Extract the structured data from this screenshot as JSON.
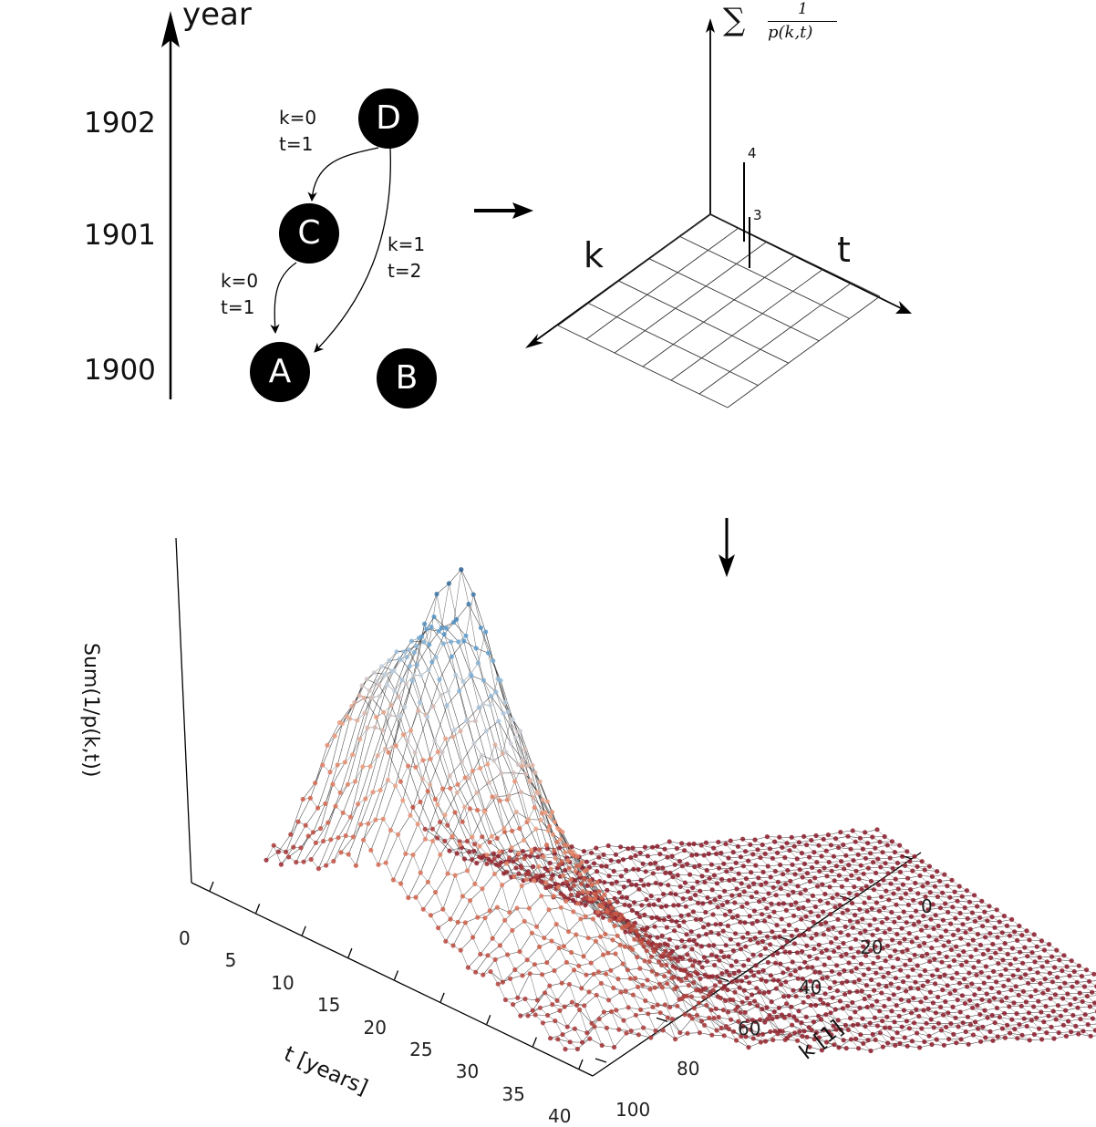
{
  "timeline": {
    "axis_label": "year",
    "years": [
      "1902",
      "1901",
      "1900"
    ]
  },
  "nodes": {
    "D": "D",
    "C": "C",
    "A": "A",
    "B": "B"
  },
  "edges": {
    "d_to_c": "k=0\nt=1",
    "c_to_a": "k=0\nt=1",
    "d_to_a": "k=1\nt=2"
  },
  "schematic": {
    "z_label_sum": "∑",
    "z_label_num": "1",
    "z_label_den": "p(k,t)",
    "k_label": "k",
    "t_label": "t",
    "bar_labels": [
      "4",
      "3"
    ]
  },
  "chart_data": {
    "type": "surface",
    "title": "",
    "xlabel": "t [years]",
    "ylabel": "k [1]",
    "zlabel": "Sum(1/p(k,t))",
    "x_ticks": [
      "0",
      "5",
      "10",
      "15",
      "20",
      "25",
      "30",
      "35",
      "40"
    ],
    "y_ticks": [
      "0",
      "20",
      "40",
      "60",
      "80",
      "100"
    ],
    "xlim": [
      0,
      40
    ],
    "ylim": [
      0,
      100
    ],
    "colormap": [
      "#2a5d8c",
      "#5e9fd0",
      "#c8d4e0",
      "#f0a080",
      "#d0604a",
      "#8b1a2a"
    ],
    "peak": {
      "t": 0,
      "k": 15
    }
  },
  "flow_arrows": {
    "right": "arrow-right",
    "down": "arrow-down"
  }
}
